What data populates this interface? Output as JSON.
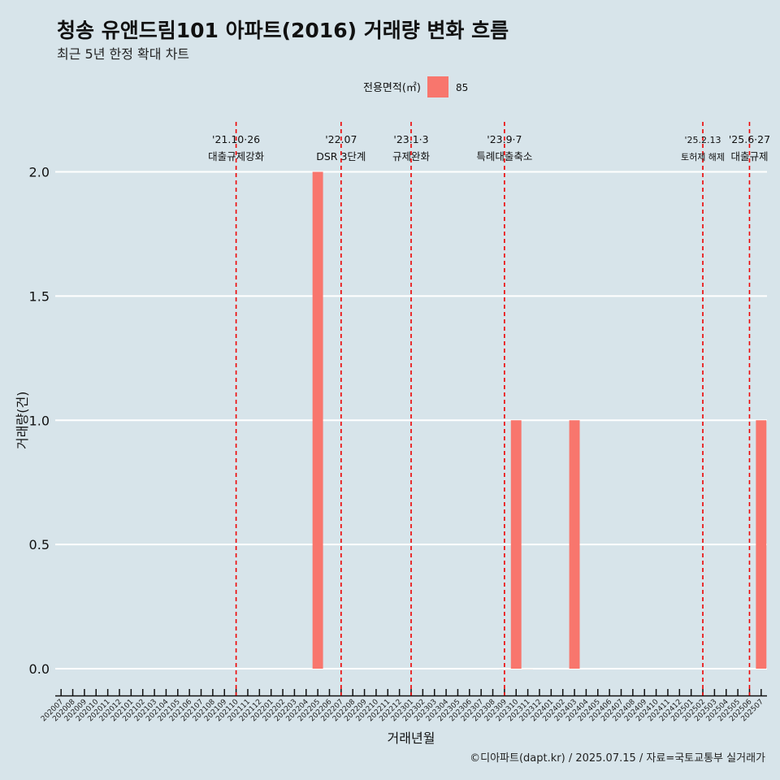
{
  "title": "청송 유앤드림101 아파트(2016) 거래량 변화 흐름",
  "subtitle": "최근 5년 한정 확대 차트",
  "caption": "©디아파트(dapt.kr) / 2025.07.15 / 자료=국토교통부 실거래가",
  "chart_data": {
    "type": "bar",
    "xlabel": "거래년월",
    "ylabel": "거래량(건)",
    "ylim": [
      0,
      2
    ],
    "yticks": [
      "0.0",
      "0.5",
      "1.0",
      "1.5",
      "2.0"
    ],
    "legend": {
      "title": "전용면적(㎡)",
      "position": "top",
      "items": [
        {
          "label": "85",
          "color": "#f8766d"
        }
      ]
    },
    "categories": [
      "202007",
      "202008",
      "202009",
      "202010",
      "202011",
      "202012",
      "202101",
      "202102",
      "202103",
      "202104",
      "202105",
      "202106",
      "202107",
      "202108",
      "202109",
      "202110",
      "202111",
      "202112",
      "202201",
      "202202",
      "202203",
      "202204",
      "202205",
      "202206",
      "202207",
      "202208",
      "202209",
      "202210",
      "202211",
      "202212",
      "202301",
      "202302",
      "202303",
      "202304",
      "202305",
      "202306",
      "202307",
      "202308",
      "202309",
      "202310",
      "202311",
      "202312",
      "202401",
      "202402",
      "202403",
      "202404",
      "202405",
      "202406",
      "202407",
      "202408",
      "202409",
      "202410",
      "202411",
      "202412",
      "202501",
      "202502",
      "202503",
      "202504",
      "202505",
      "202506",
      "202507"
    ],
    "series": [
      {
        "name": "85",
        "color": "#f8766d",
        "values": [
          0,
          0,
          0,
          0,
          0,
          0,
          0,
          0,
          0,
          0,
          0,
          0,
          0,
          0,
          0,
          0,
          0,
          0,
          0,
          0,
          0,
          0,
          2,
          0,
          0,
          0,
          0,
          0,
          0,
          0,
          0,
          0,
          0,
          0,
          0,
          0,
          0,
          0,
          0,
          1,
          0,
          0,
          0,
          0,
          1,
          0,
          0,
          0,
          0,
          0,
          0,
          0,
          0,
          0,
          0,
          0,
          0,
          0,
          0,
          0,
          1
        ]
      }
    ],
    "zero_bars_visible": [
      "202205",
      "202309",
      "202310",
      "202311",
      "202403",
      "202507"
    ],
    "annotations": [
      {
        "x": "202110",
        "line1": "'21.10·26",
        "line2": "대출규제강화",
        "small": false
      },
      {
        "x": "202207",
        "line1": "'22.07",
        "line2": "DSR 3단계",
        "small": false
      },
      {
        "x": "202301",
        "line1": "'23.1·3",
        "line2": "규제완화",
        "small": false
      },
      {
        "x": "202309",
        "line1": "'23.9·7",
        "line2": "특례대출축소",
        "small": false
      },
      {
        "x": "202502",
        "line1": "'25.2.13",
        "line2": "토허제 해제",
        "small": true
      },
      {
        "x": "202506",
        "line1": "'25.6·27",
        "line2": "대출규제",
        "small": false
      }
    ],
    "grid": true
  }
}
